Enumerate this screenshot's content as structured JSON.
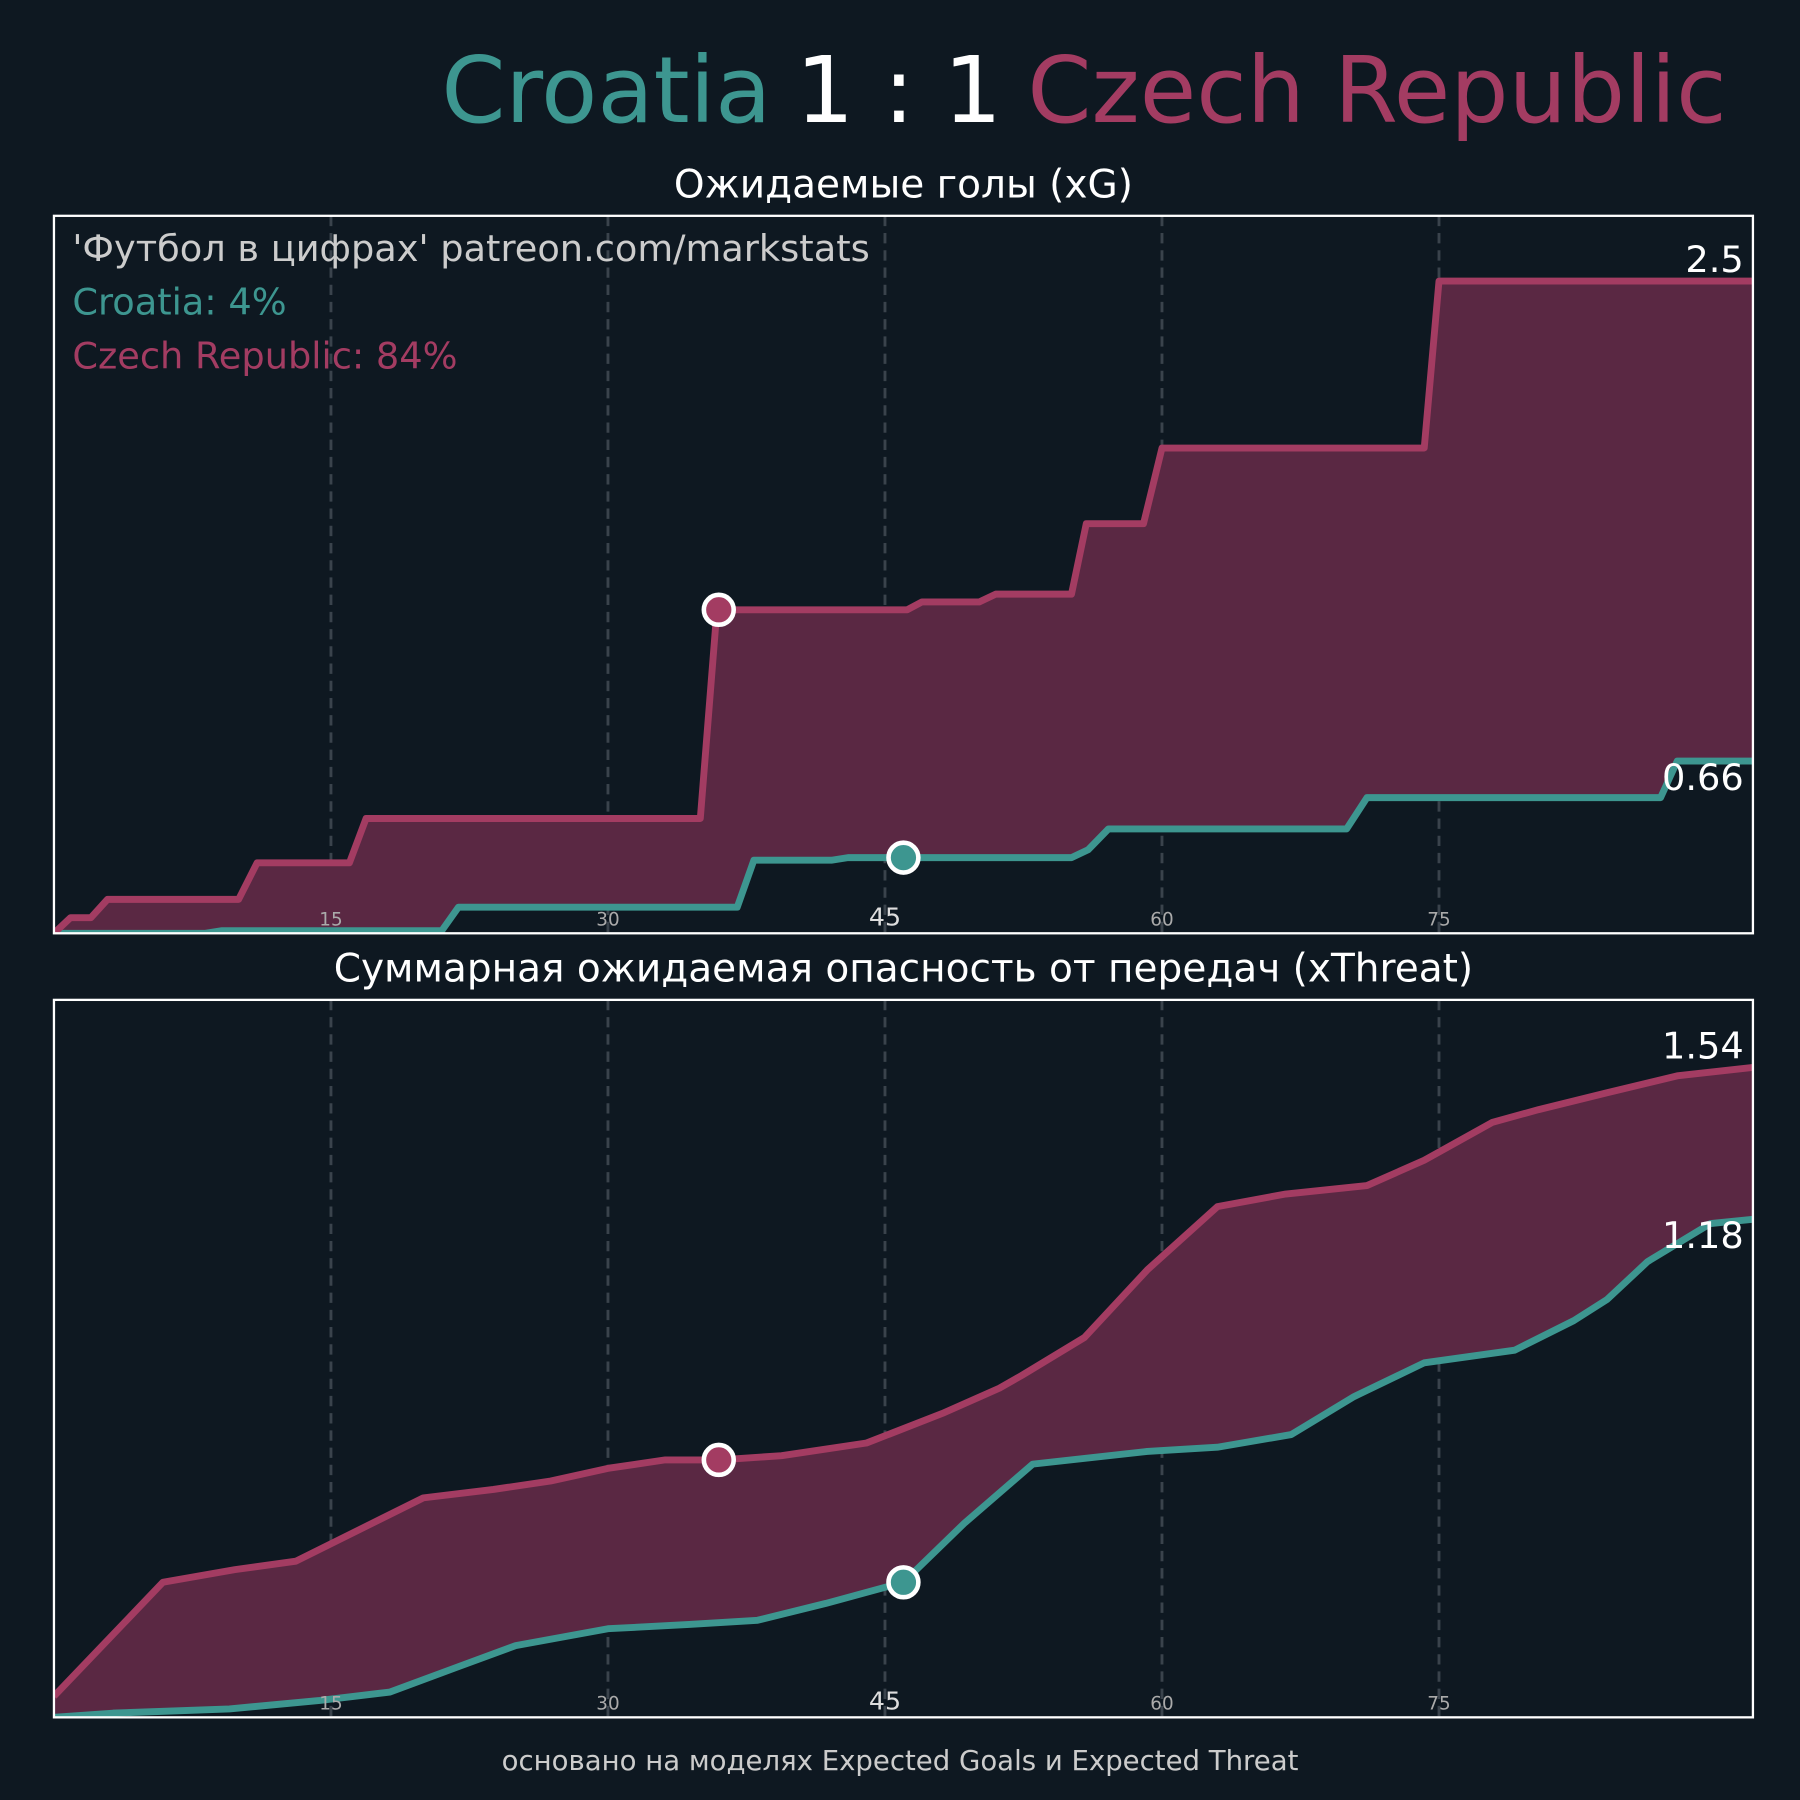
{
  "header": {
    "home": "Croatia",
    "score": "1 : 1",
    "away": "Czech Republic"
  },
  "footnote": "основано на моделях Expected Goals и Expected Threat",
  "chart_data": [
    {
      "type": "line",
      "title": "Ожидаемые голы (xG)",
      "fill_between": "#5a2843",
      "xlim": [
        0,
        92
      ],
      "ylim": [
        0,
        2.75
      ],
      "xticks": [
        15,
        30,
        45,
        60,
        75
      ],
      "emphasized_xtick": 45,
      "grid": true,
      "annotations": [
        {
          "text": "'Футбол в цифрах' patreon.com/markstats",
          "color": "#cccccc"
        },
        {
          "text": "Croatia: 4%",
          "color": "#3d9690"
        },
        {
          "text": "Czech Republic: 84%",
          "color": "#a33c62"
        }
      ],
      "series": [
        {
          "name": "Croatia",
          "color": "#3d9690",
          "x": [
            0,
            8.2,
            9.1,
            21,
            21.9,
            37,
            37.9,
            42.1,
            43,
            55.1,
            56,
            57.1,
            70,
            71.1,
            87,
            87.9,
            92
          ],
          "values": [
            0,
            0,
            0.01,
            0.01,
            0.1,
            0.1,
            0.28,
            0.28,
            0.29,
            0.29,
            0.32,
            0.4,
            0.4,
            0.52,
            0.52,
            0.66,
            0.66
          ],
          "goals": [
            {
              "x": 46,
              "y": 0.29
            }
          ]
        },
        {
          "name": "Czech Republic",
          "color": "#a33c62",
          "x": [
            0,
            0.9,
            2,
            2.9,
            10,
            11,
            16,
            16.9,
            35,
            35.9,
            46.2,
            47,
            50.1,
            51,
            55.1,
            55.9,
            59,
            60,
            74.2,
            75,
            92
          ],
          "values": [
            0,
            0.06,
            0.06,
            0.13,
            0.13,
            0.27,
            0.27,
            0.44,
            0.44,
            1.24,
            1.24,
            1.27,
            1.27,
            1.3,
            1.3,
            1.57,
            1.57,
            1.86,
            1.86,
            2.5,
            2.5
          ],
          "goals": [
            {
              "x": 36,
              "y": 1.24
            }
          ]
        }
      ]
    },
    {
      "type": "line",
      "title": "Суммарная ожидаемая опасность от передач (xThreat)",
      "fill_between": "#5a2843",
      "xlim": [
        0,
        92
      ],
      "ylim": [
        0,
        1.7
      ],
      "xticks": [
        15,
        30,
        45,
        60,
        75
      ],
      "emphasized_xtick": 45,
      "grid": true,
      "series": [
        {
          "name": "Croatia",
          "color": "#3d9690",
          "x": [
            0,
            3.2,
            9.5,
            14.4,
            18.2,
            21.9,
            25,
            30,
            34.4,
            38.1,
            41.8,
            46,
            49.3,
            53,
            59.2,
            63,
            67,
            70.4,
            74.2,
            79.1,
            82.3,
            84.1,
            86.3,
            89.7,
            92
          ],
          "values": [
            0,
            0.01,
            0.02,
            0.04,
            0.06,
            0.12,
            0.17,
            0.21,
            0.22,
            0.23,
            0.27,
            0.32,
            0.46,
            0.6,
            0.63,
            0.64,
            0.67,
            0.76,
            0.84,
            0.87,
            0.94,
            0.99,
            1.08,
            1.17,
            1.18
          ],
          "goals": [
            {
              "x": 46,
              "y": 0.32
            }
          ]
        },
        {
          "name": "Czech Republic",
          "color": "#a33c62",
          "x": [
            0,
            5.9,
            9.8,
            13.1,
            20,
            23.8,
            26.9,
            30,
            33.1,
            36,
            39.4,
            44,
            48.1,
            51.2,
            52.4,
            55.8,
            59.2,
            63,
            66.7,
            71.1,
            74.2,
            77.9,
            80.4,
            84.1,
            87.9,
            92
          ],
          "values": [
            0.05,
            0.32,
            0.35,
            0.37,
            0.52,
            0.54,
            0.56,
            0.59,
            0.61,
            0.61,
            0.62,
            0.65,
            0.72,
            0.78,
            0.81,
            0.9,
            1.06,
            1.21,
            1.24,
            1.26,
            1.32,
            1.41,
            1.44,
            1.48,
            1.52,
            1.54
          ],
          "goals": [
            {
              "x": 36,
              "y": 0.61
            }
          ]
        }
      ]
    }
  ]
}
